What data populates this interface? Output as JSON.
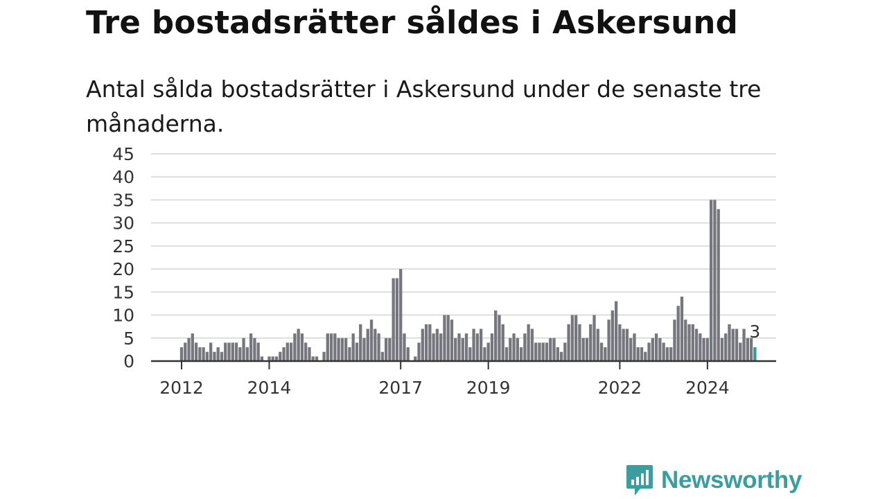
{
  "title": "Tre bostadsrätter såldes i Askersund",
  "subtitle": "Antal sålda bostadsrätter i Askersund under de senaste tre månaderna.",
  "brand": {
    "name": "Newsworthy",
    "icon": "newsworthy-logo-icon",
    "color": "#3a9e9e"
  },
  "colors": {
    "bar": "#76767e",
    "highlight": "#2a9d9a",
    "grid": "#dddddd",
    "axis": "#333333"
  },
  "chart_data": {
    "type": "bar",
    "ylim": [
      0,
      45
    ],
    "yticks": [
      "0",
      "5",
      "10",
      "15",
      "20",
      "25",
      "30",
      "35",
      "40",
      "45"
    ],
    "xticks": [
      {
        "label": "2012",
        "index": 0
      },
      {
        "label": "2014",
        "index": 24
      },
      {
        "label": "2017",
        "index": 60
      },
      {
        "label": "2019",
        "index": 84
      },
      {
        "label": "2022",
        "index": 120
      },
      {
        "label": "2024",
        "index": 144
      }
    ],
    "grid": true,
    "first_period": "2012-01",
    "last_period": "2025-02",
    "highlight_label": "3",
    "values": [
      3,
      4,
      5,
      6,
      4,
      3,
      3,
      2,
      4,
      2,
      3,
      2,
      4,
      4,
      4,
      4,
      3,
      5,
      3,
      6,
      5,
      4,
      1,
      0,
      1,
      1,
      1,
      2,
      3,
      4,
      4,
      6,
      7,
      6,
      4,
      3,
      1,
      1,
      0,
      2,
      6,
      6,
      6,
      5,
      5,
      5,
      3,
      6,
      4,
      8,
      5,
      7,
      9,
      7,
      6,
      2,
      5,
      5,
      18,
      18,
      20,
      6,
      3,
      0,
      1,
      4,
      7,
      8,
      8,
      6,
      7,
      6,
      10,
      10,
      9,
      5,
      6,
      5,
      6,
      3,
      7,
      6,
      7,
      3,
      4,
      6,
      11,
      10,
      8,
      3,
      5,
      6,
      5,
      3,
      6,
      8,
      7,
      4,
      4,
      4,
      4,
      5,
      5,
      3,
      2,
      4,
      8,
      10,
      10,
      8,
      5,
      5,
      8,
      10,
      7,
      4,
      3,
      9,
      11,
      13,
      8,
      7,
      7,
      5,
      6,
      3,
      3,
      2,
      4,
      5,
      6,
      5,
      4,
      3,
      3,
      9,
      12,
      14,
      9,
      8,
      8,
      7,
      6,
      5,
      5,
      35,
      35,
      33,
      5,
      6,
      8,
      7,
      7,
      4,
      7,
      5,
      5,
      3
    ]
  }
}
